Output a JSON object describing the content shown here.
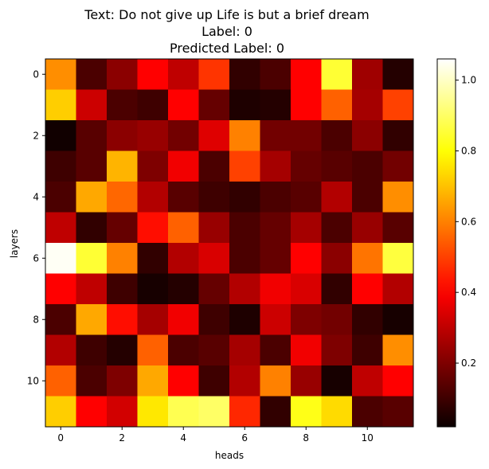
{
  "chart_data": {
    "type": "heatmap",
    "title_lines": [
      "Text: Do not give up Life is but a brief dream",
      "Label: 0",
      "Predicted Label: 0"
    ],
    "xlabel": "heads",
    "ylabel": "layers",
    "x_ticks": [
      0,
      2,
      4,
      6,
      8,
      10
    ],
    "y_ticks": [
      0,
      2,
      4,
      6,
      8,
      10
    ],
    "colorbar": {
      "colormap": "hot",
      "range": [
        0.02,
        1.06
      ],
      "ticks": [
        0.2,
        0.4,
        0.6,
        0.8,
        1.0
      ]
    },
    "values": [
      [
        0.62,
        0.12,
        0.22,
        0.4,
        0.3,
        0.48,
        0.08,
        0.12,
        0.4,
        0.85,
        0.25,
        0.06
      ],
      [
        0.72,
        0.32,
        0.12,
        0.1,
        0.4,
        0.16,
        0.05,
        0.06,
        0.4,
        0.55,
        0.26,
        0.5
      ],
      [
        0.03,
        0.14,
        0.22,
        0.24,
        0.18,
        0.35,
        0.6,
        0.18,
        0.18,
        0.12,
        0.22,
        0.08
      ],
      [
        0.1,
        0.14,
        0.68,
        0.2,
        0.38,
        0.12,
        0.5,
        0.26,
        0.16,
        0.14,
        0.12,
        0.18
      ],
      [
        0.12,
        0.66,
        0.56,
        0.28,
        0.14,
        0.1,
        0.08,
        0.12,
        0.14,
        0.28,
        0.12,
        0.62
      ],
      [
        0.3,
        0.08,
        0.16,
        0.42,
        0.55,
        0.24,
        0.12,
        0.16,
        0.26,
        0.12,
        0.24,
        0.14
      ],
      [
        1.05,
        0.85,
        0.6,
        0.08,
        0.28,
        0.34,
        0.12,
        0.16,
        0.4,
        0.22,
        0.58,
        0.86
      ],
      [
        0.4,
        0.3,
        0.1,
        0.04,
        0.06,
        0.16,
        0.28,
        0.38,
        0.34,
        0.08,
        0.4,
        0.28
      ],
      [
        0.12,
        0.66,
        0.42,
        0.26,
        0.38,
        0.1,
        0.05,
        0.32,
        0.2,
        0.18,
        0.08,
        0.04
      ],
      [
        0.28,
        0.1,
        0.06,
        0.55,
        0.12,
        0.14,
        0.26,
        0.12,
        0.38,
        0.2,
        0.1,
        0.62
      ],
      [
        0.55,
        0.12,
        0.2,
        0.66,
        0.4,
        0.1,
        0.28,
        0.6,
        0.24,
        0.04,
        0.3,
        0.4
      ],
      [
        0.72,
        0.4,
        0.33,
        0.76,
        0.88,
        0.9,
        0.46,
        0.08,
        0.82,
        0.74,
        0.12,
        0.14
      ]
    ]
  }
}
